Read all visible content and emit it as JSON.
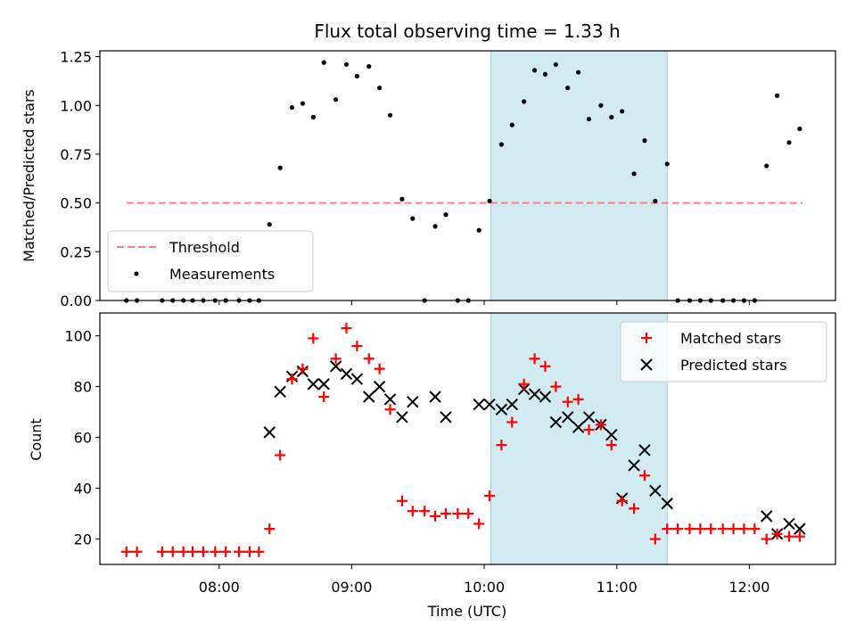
{
  "title": "Flux total observing time = 1.33 h",
  "x_axis": {
    "label": "Time (UTC)",
    "tick_labels": [
      "08:00",
      "09:00",
      "10:00",
      "11:00",
      "12:00"
    ],
    "tick_values": [
      8.0,
      9.0,
      10.0,
      11.0,
      12.0
    ],
    "range": [
      7.1,
      12.65
    ]
  },
  "colors": {
    "threshold": "#ff7f7f",
    "measurements": "#000000",
    "matched": "#ff0000",
    "predicted": "#000000",
    "shade": "#add8e6"
  },
  "shaded_interval": [
    10.05,
    11.38
  ],
  "chart_data": [
    {
      "type": "scatter",
      "ylabel": "Matched/Predicted stars",
      "ylim": [
        0.0,
        1.28
      ],
      "y_ticks": [
        0.0,
        0.25,
        0.5,
        0.75,
        1.0,
        1.25
      ],
      "y_tick_labels": [
        "0.00",
        "0.25",
        "0.50",
        "0.75",
        "1.00",
        "1.25"
      ],
      "legend": {
        "placement": "lower-left",
        "threshold_label": "Threshold",
        "measurements_label": "Measurements"
      },
      "threshold": {
        "name": "Threshold",
        "value": 0.5,
        "x_range": [
          7.3,
          12.4
        ]
      },
      "series": [
        {
          "name": "Measurements",
          "x": [
            7.3,
            7.38,
            7.57,
            7.65,
            7.73,
            7.8,
            7.88,
            7.97,
            8.05,
            8.15,
            8.23,
            8.3,
            8.38,
            8.46,
            8.55,
            8.63,
            8.71,
            8.79,
            8.88,
            8.96,
            9.04,
            9.13,
            9.21,
            9.29,
            9.38,
            9.46,
            9.55,
            9.63,
            9.71,
            9.8,
            9.88,
            9.96,
            10.04,
            10.13,
            10.21,
            10.3,
            10.38,
            10.46,
            10.54,
            10.63,
            10.71,
            10.79,
            10.88,
            10.96,
            11.04,
            11.13,
            11.21,
            11.29,
            11.38,
            11.46,
            11.55,
            11.63,
            11.71,
            11.8,
            11.88,
            11.96,
            12.04,
            12.13,
            12.21,
            12.3,
            12.38
          ],
          "y": [
            0,
            0,
            0,
            0,
            0,
            0,
            0,
            0,
            0,
            0,
            0,
            0,
            0.39,
            0.68,
            0.99,
            1.01,
            0.94,
            1.22,
            1.03,
            1.21,
            1.15,
            1.2,
            1.09,
            0.95,
            0.52,
            0.42,
            0,
            0.38,
            0.44,
            0,
            0,
            0.36,
            0.51,
            0.8,
            0.9,
            1.02,
            1.18,
            1.16,
            1.21,
            1.09,
            1.17,
            0.93,
            1.0,
            0.94,
            0.97,
            0.65,
            0.82,
            0.51,
            0.7,
            0,
            0,
            0,
            0,
            0,
            0,
            0,
            0,
            0.69,
            1.05,
            0.81,
            0.88
          ]
        }
      ]
    },
    {
      "type": "scatter",
      "ylabel": "Count",
      "ylim": [
        10,
        109
      ],
      "y_ticks": [
        20,
        40,
        60,
        80,
        100
      ],
      "y_tick_labels": [
        "20",
        "40",
        "60",
        "80",
        "100"
      ],
      "legend": {
        "placement": "top-right",
        "matched_label": "Matched stars",
        "predicted_label": "Predicted stars"
      },
      "series": [
        {
          "name": "Matched stars",
          "x": [
            7.3,
            7.38,
            7.57,
            7.65,
            7.73,
            7.8,
            7.88,
            7.97,
            8.05,
            8.15,
            8.23,
            8.3,
            8.38,
            8.46,
            8.55,
            8.63,
            8.71,
            8.79,
            8.88,
            8.96,
            9.04,
            9.13,
            9.21,
            9.29,
            9.38,
            9.46,
            9.55,
            9.63,
            9.71,
            9.8,
            9.88,
            9.96,
            10.04,
            10.13,
            10.21,
            10.3,
            10.38,
            10.46,
            10.54,
            10.63,
            10.71,
            10.79,
            10.88,
            10.96,
            11.04,
            11.13,
            11.21,
            11.29,
            11.38,
            11.46,
            11.55,
            11.63,
            11.71,
            11.8,
            11.88,
            11.96,
            12.04,
            12.13,
            12.21,
            12.3,
            12.38
          ],
          "y": [
            15,
            15,
            15,
            15,
            15,
            15,
            15,
            15,
            15,
            15,
            15,
            15,
            24,
            53,
            83,
            87,
            99,
            76,
            91,
            103,
            96,
            91,
            87,
            71,
            35,
            31,
            31,
            29,
            30,
            30,
            30,
            26,
            37,
            57,
            66,
            81,
            91,
            88,
            80,
            74,
            75,
            63,
            65,
            57,
            35,
            32,
            45,
            20,
            24,
            24,
            24,
            24,
            24,
            24,
            24,
            24,
            24,
            20,
            22,
            21,
            21
          ]
        },
        {
          "name": "Predicted stars",
          "x": [
            8.38,
            8.46,
            8.55,
            8.63,
            8.71,
            8.79,
            8.88,
            8.96,
            9.04,
            9.13,
            9.21,
            9.29,
            9.38,
            9.46,
            9.63,
            9.71,
            9.96,
            10.04,
            10.13,
            10.21,
            10.3,
            10.38,
            10.46,
            10.54,
            10.63,
            10.71,
            10.79,
            10.88,
            10.96,
            11.04,
            11.13,
            11.21,
            11.29,
            11.38,
            12.13,
            12.21,
            12.3,
            12.38
          ],
          "y": [
            62,
            78,
            84,
            86,
            81,
            81,
            88,
            85,
            83,
            76,
            80,
            75,
            68,
            74,
            76,
            68,
            73,
            73,
            71,
            73,
            79,
            77,
            76,
            66,
            68,
            64,
            68,
            65,
            61,
            36,
            49,
            55,
            39,
            34,
            29,
            22,
            26,
            24
          ]
        }
      ]
    }
  ]
}
